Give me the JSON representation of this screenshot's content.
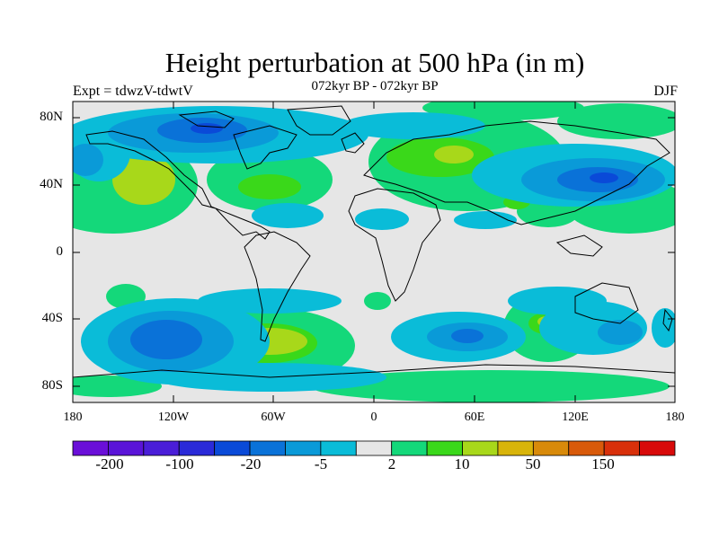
{
  "title": "Height perturbation at 500 hPa (in m)",
  "subtitle": "072kyr BP - 072kyr BP",
  "left_label": "Expt = tdwzV-tdwtV",
  "right_label": "DJF",
  "lat_labels": [
    "80N",
    "40N",
    "0",
    "40S",
    "80S"
  ],
  "lon_labels": [
    "180",
    "120W",
    "60W",
    "0",
    "60E",
    "120E",
    "180"
  ],
  "colorbar": {
    "colors": [
      "#6a0fd8",
      "#5a14d8",
      "#4a1ed8",
      "#2a2ad8",
      "#0a4ad8",
      "#0a72d8",
      "#0a9ad8",
      "#0abcd8",
      "#e6e6e6",
      "#14d87a",
      "#3ad81a",
      "#a8d81a",
      "#d8b40a",
      "#d88a0a",
      "#d85a0a",
      "#d8300a",
      "#d80a0a"
    ],
    "labels": [
      "-200",
      "-100",
      "-20",
      "-5",
      "2",
      "10",
      "50",
      "150"
    ]
  }
}
